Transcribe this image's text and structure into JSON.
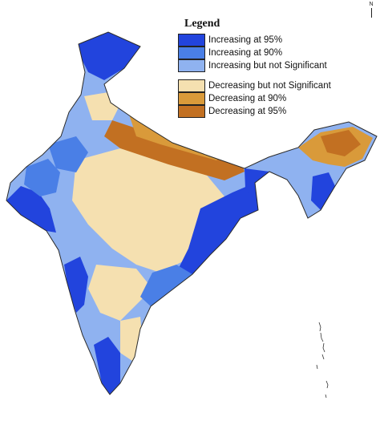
{
  "legend": {
    "title": "Legend",
    "groups": [
      [
        {
          "label": "Increasing at 95%",
          "color": "#2244dd"
        },
        {
          "label": "Increasing at 90%",
          "color": "#4a7fe6"
        },
        {
          "label": "Increasing but not Significant",
          "color": "#8fb2f0"
        }
      ],
      [
        {
          "label": "Decreasing but not Significant",
          "color": "#f5e0b0"
        },
        {
          "label": "Decreasing at 90%",
          "color": "#d99a3a"
        },
        {
          "label": "Decreasing at 95%",
          "color": "#c27022"
        }
      ]
    ]
  },
  "north_arrow": "N",
  "map_colors": {
    "border": "#2a2a2a",
    "background": "#ffffff"
  }
}
